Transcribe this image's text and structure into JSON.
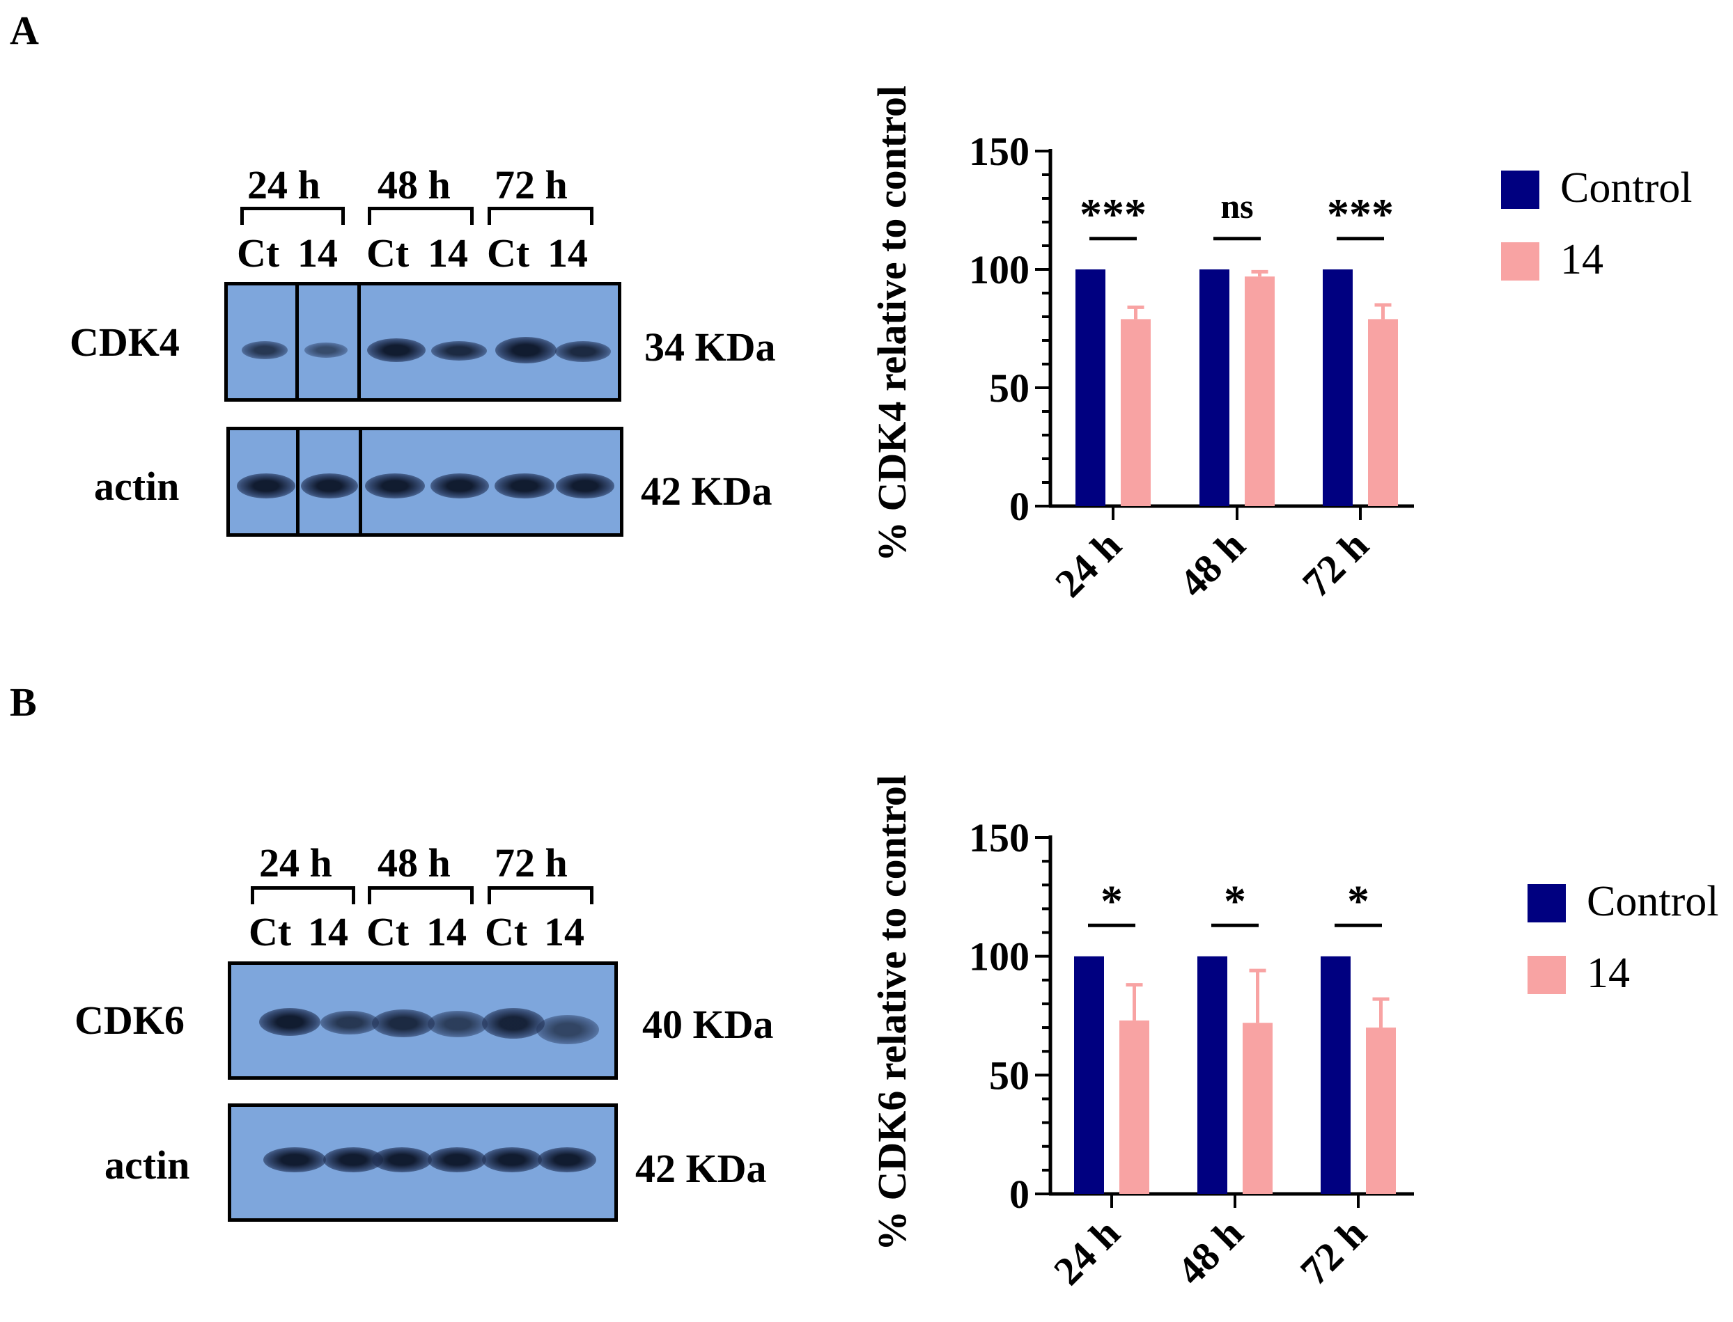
{
  "panels": [
    {
      "letter": "A",
      "blot": {
        "time_labels": [
          "24 h",
          "48 h",
          "72 h"
        ],
        "lane_labels": [
          "Ct",
          "14",
          "Ct",
          "14",
          "Ct",
          "14"
        ],
        "proteins": [
          {
            "name": "CDK4",
            "kda": "34 KDa"
          },
          {
            "name": "actin",
            "kda": "42 KDa"
          }
        ]
      }
    },
    {
      "letter": "B",
      "blot": {
        "time_labels": [
          "24 h",
          "48 h",
          "72 h"
        ],
        "lane_labels": [
          "Ct",
          "14",
          "Ct",
          "14",
          "Ct",
          "14"
        ],
        "proteins": [
          {
            "name": "CDK6",
            "kda": "40 KDa"
          },
          {
            "name": "actin",
            "kda": "42 KDa"
          }
        ]
      }
    }
  ],
  "chart_data": [
    {
      "type": "bar",
      "ylabel": "% CDK4 relative to control",
      "categories": [
        "24 h",
        "48 h",
        "72 h"
      ],
      "ylim": [
        0,
        150
      ],
      "yticks": [
        "0",
        "50",
        "100",
        "150"
      ],
      "series": [
        {
          "name": "Control",
          "color": "#000080",
          "values": [
            100,
            100,
            100
          ],
          "errors": [
            0,
            0,
            0
          ]
        },
        {
          "name": "14",
          "color": "#f8a3a3",
          "values": [
            79,
            97,
            79
          ],
          "errors": [
            5,
            2,
            6
          ]
        }
      ],
      "significance": [
        "***",
        "ns",
        "***"
      ],
      "legend": "right"
    },
    {
      "type": "bar",
      "ylabel": "% CDK6 relative to control",
      "categories": [
        "24 h",
        "48 h",
        "72 h"
      ],
      "ylim": [
        0,
        150
      ],
      "yticks": [
        "0",
        "50",
        "100",
        "150"
      ],
      "series": [
        {
          "name": "Control",
          "color": "#000080",
          "values": [
            100,
            100,
            100
          ],
          "errors": [
            0,
            0,
            0
          ]
        },
        {
          "name": "14",
          "color": "#f8a3a3",
          "values": [
            73,
            72,
            70
          ],
          "errors": [
            15,
            22,
            12
          ]
        }
      ],
      "significance": [
        "*",
        "*",
        "*"
      ],
      "legend": "right"
    }
  ]
}
